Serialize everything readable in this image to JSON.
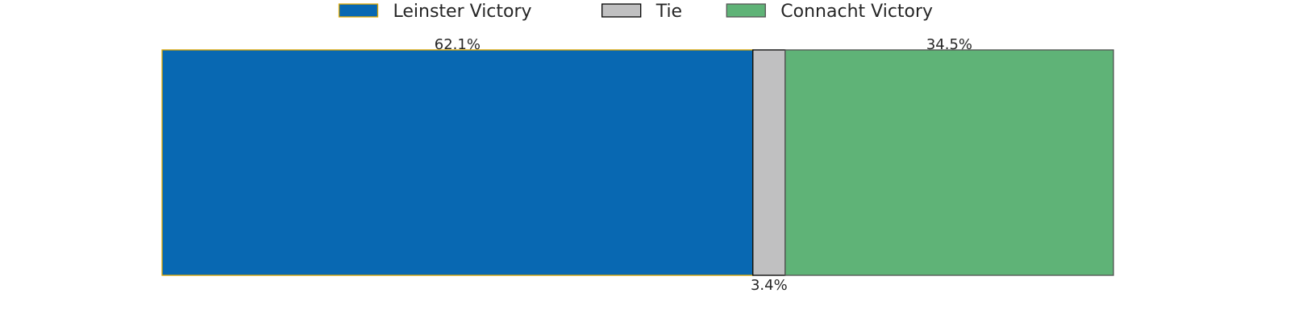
{
  "chart_data": {
    "type": "bar",
    "orientation": "horizontal-stacked",
    "categories": [
      ""
    ],
    "series": [
      {
        "name": "Leinster Victory",
        "values": [
          62.1
        ],
        "label": "62.1%",
        "color": "#0868b2",
        "edge_color": "#e0a800",
        "label_position": "top"
      },
      {
        "name": "Tie",
        "values": [
          3.4
        ],
        "label": "3.4%",
        "color": "#c0c0c1",
        "edge_color": "#000000",
        "label_position": "bottom"
      },
      {
        "name": "Connacht Victory",
        "values": [
          34.5
        ],
        "label": "34.5%",
        "color": "#5fb377",
        "edge_color": "#555555",
        "label_position": "top"
      }
    ],
    "xlim": [
      0,
      100
    ],
    "axes_visible": false,
    "grid": false,
    "legend_position": "top-center",
    "title": "",
    "xlabel": "",
    "ylabel": ""
  }
}
